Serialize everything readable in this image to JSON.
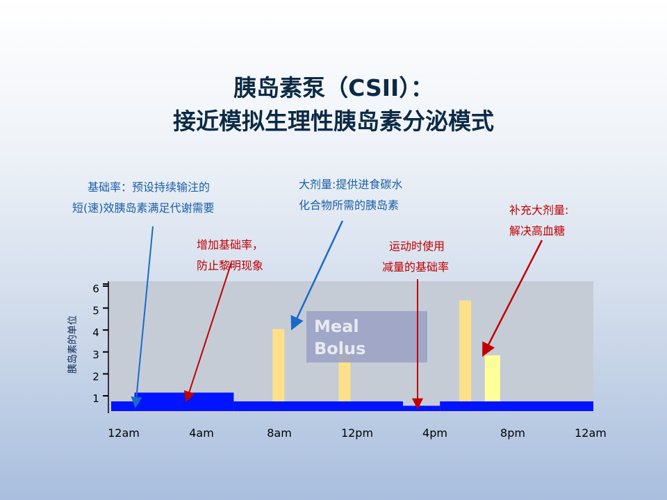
{
  "title": {
    "line1": "胰岛素泵（CSII）：",
    "line2": "接近模拟生理性胰岛素分泌模式"
  },
  "annotations": {
    "basal": [
      "基础率：预设持续输注的",
      "短(速)效胰岛素满足代谢需要"
    ],
    "meal_bolus": [
      "大剂量:提供进食碳水",
      "化合物所需的胰岛素"
    ],
    "increase_basal": [
      "增加基础率，",
      "防止黎明现象"
    ],
    "exercise_basal": [
      "运动时使用",
      "减量的基础率"
    ],
    "correction_bolus": [
      "补充大剂量:",
      "解决高血糖"
    ]
  },
  "meal_bolus_label": [
    "Meal",
    "Bolus"
  ],
  "colors": {
    "title": "#0c2a45",
    "basal": "#0014ff",
    "meal_bolus": "#ffe08a",
    "correction_bolus": "#ffff99",
    "plot_bg": "#c5ccd6",
    "arrow_blue": "#1a6ac8",
    "arrow_red": "#c00000"
  },
  "chart_data": {
    "type": "bar",
    "ylabel": "胰岛素的单位",
    "xlabel": "",
    "x_ticks": [
      "12am",
      "4am",
      "8am",
      "12pm",
      "4pm",
      "8pm",
      "12am"
    ],
    "y_ticks": [
      "1",
      "2",
      "3",
      "4",
      "5",
      "6"
    ],
    "xlim_hours": [
      0,
      24
    ],
    "ylim": [
      0.5,
      6.5
    ],
    "basal_steps": [
      {
        "start_hour": 0.0,
        "end_hour": 1.2,
        "rate": 1.0
      },
      {
        "start_hour": 1.2,
        "end_hour": 6.3,
        "rate": 1.4
      },
      {
        "start_hour": 6.3,
        "end_hour": 15.0,
        "rate": 1.0
      },
      {
        "start_hour": 15.0,
        "end_hour": 16.9,
        "rate": 0.8
      },
      {
        "start_hour": 16.9,
        "end_hour": 26.0,
        "rate": 1.0
      }
    ],
    "boluses": [
      {
        "name": "breakfast",
        "hour": 8.6,
        "value": 4.3,
        "kind": "meal"
      },
      {
        "name": "lunch",
        "hour": 12.0,
        "value": 3.5,
        "kind": "meal"
      },
      {
        "name": "dinner",
        "hour": 18.2,
        "value": 5.6,
        "kind": "meal"
      },
      {
        "name": "correction",
        "hour": 19.6,
        "value": 3.1,
        "kind": "correction"
      }
    ]
  }
}
